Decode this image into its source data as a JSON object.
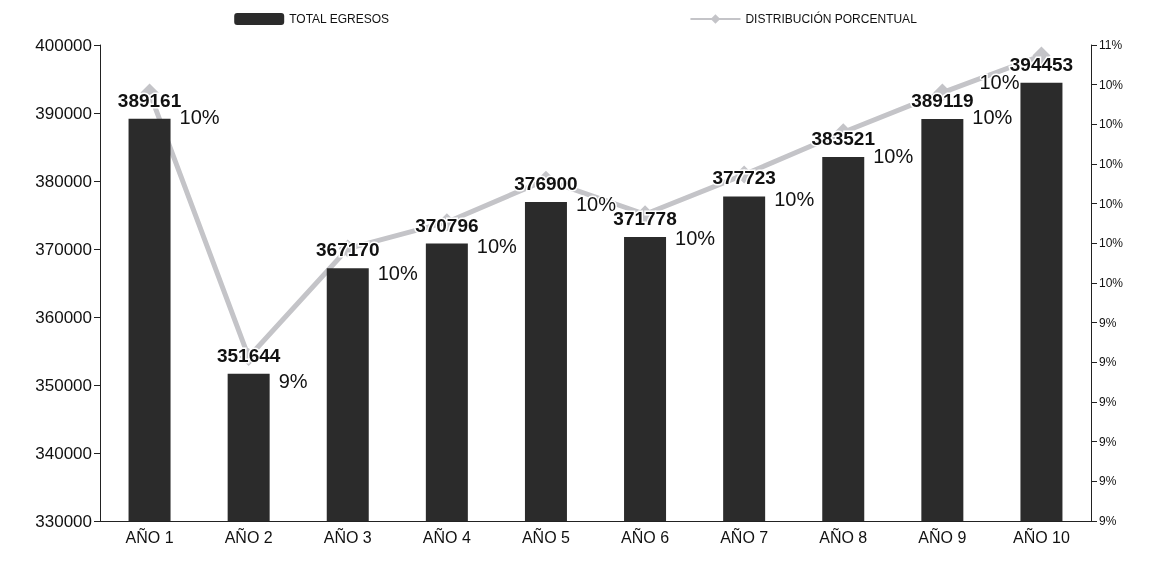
{
  "chart_data": {
    "type": "bar",
    "categories": [
      "AÑO 1",
      "AÑO 2",
      "AÑO 3",
      "AÑO 4",
      "AÑO 5",
      "AÑO 6",
      "AÑO 7",
      "AÑO 8",
      "AÑO 9",
      "AÑO 10"
    ],
    "series": [
      {
        "name": "TOTAL EGRESOS",
        "color": "#2b2b2b",
        "values": [
          389161,
          351644,
          367170,
          370796,
          376900,
          371778,
          377723,
          383521,
          389119,
          394453
        ]
      },
      {
        "name": "DISTRIBUCIÓN PORCENTUAL",
        "type": "line",
        "axis": "y2",
        "color": "#c4c4c8",
        "marker": "diamond",
        "values": [
          10.32,
          9.32,
          9.73,
          9.83,
          9.99,
          9.86,
          10.01,
          10.17,
          10.32,
          10.46
        ],
        "value_labels": [
          "10%",
          "9%",
          "10%",
          "10%",
          "10%",
          "10%",
          "10%",
          "10%",
          "10%",
          "10%"
        ]
      }
    ],
    "ylim": [
      330000,
      400000
    ],
    "yticks": [
      330000,
      340000,
      350000,
      360000,
      370000,
      380000,
      390000,
      400000
    ],
    "y2lim": [
      8.7,
      10.5
    ],
    "y2ticks": [
      {
        "value": 8.7,
        "label": "9%"
      },
      {
        "value": 8.85,
        "label": "9%"
      },
      {
        "value": 9.0,
        "label": "9%"
      },
      {
        "value": 9.15,
        "label": "9%"
      },
      {
        "value": 9.3,
        "label": "9%"
      },
      {
        "value": 9.45,
        "label": "9%"
      },
      {
        "value": 9.6,
        "label": "10%"
      },
      {
        "value": 9.75,
        "label": "10%"
      },
      {
        "value": 9.9,
        "label": "10%"
      },
      {
        "value": 10.05,
        "label": "10%"
      },
      {
        "value": 10.2,
        "label": "10%"
      },
      {
        "value": 10.35,
        "label": "10%"
      },
      {
        "value": 10.5,
        "label": "11%"
      }
    ],
    "data_labels": true,
    "grid": false,
    "legend": "top"
  }
}
